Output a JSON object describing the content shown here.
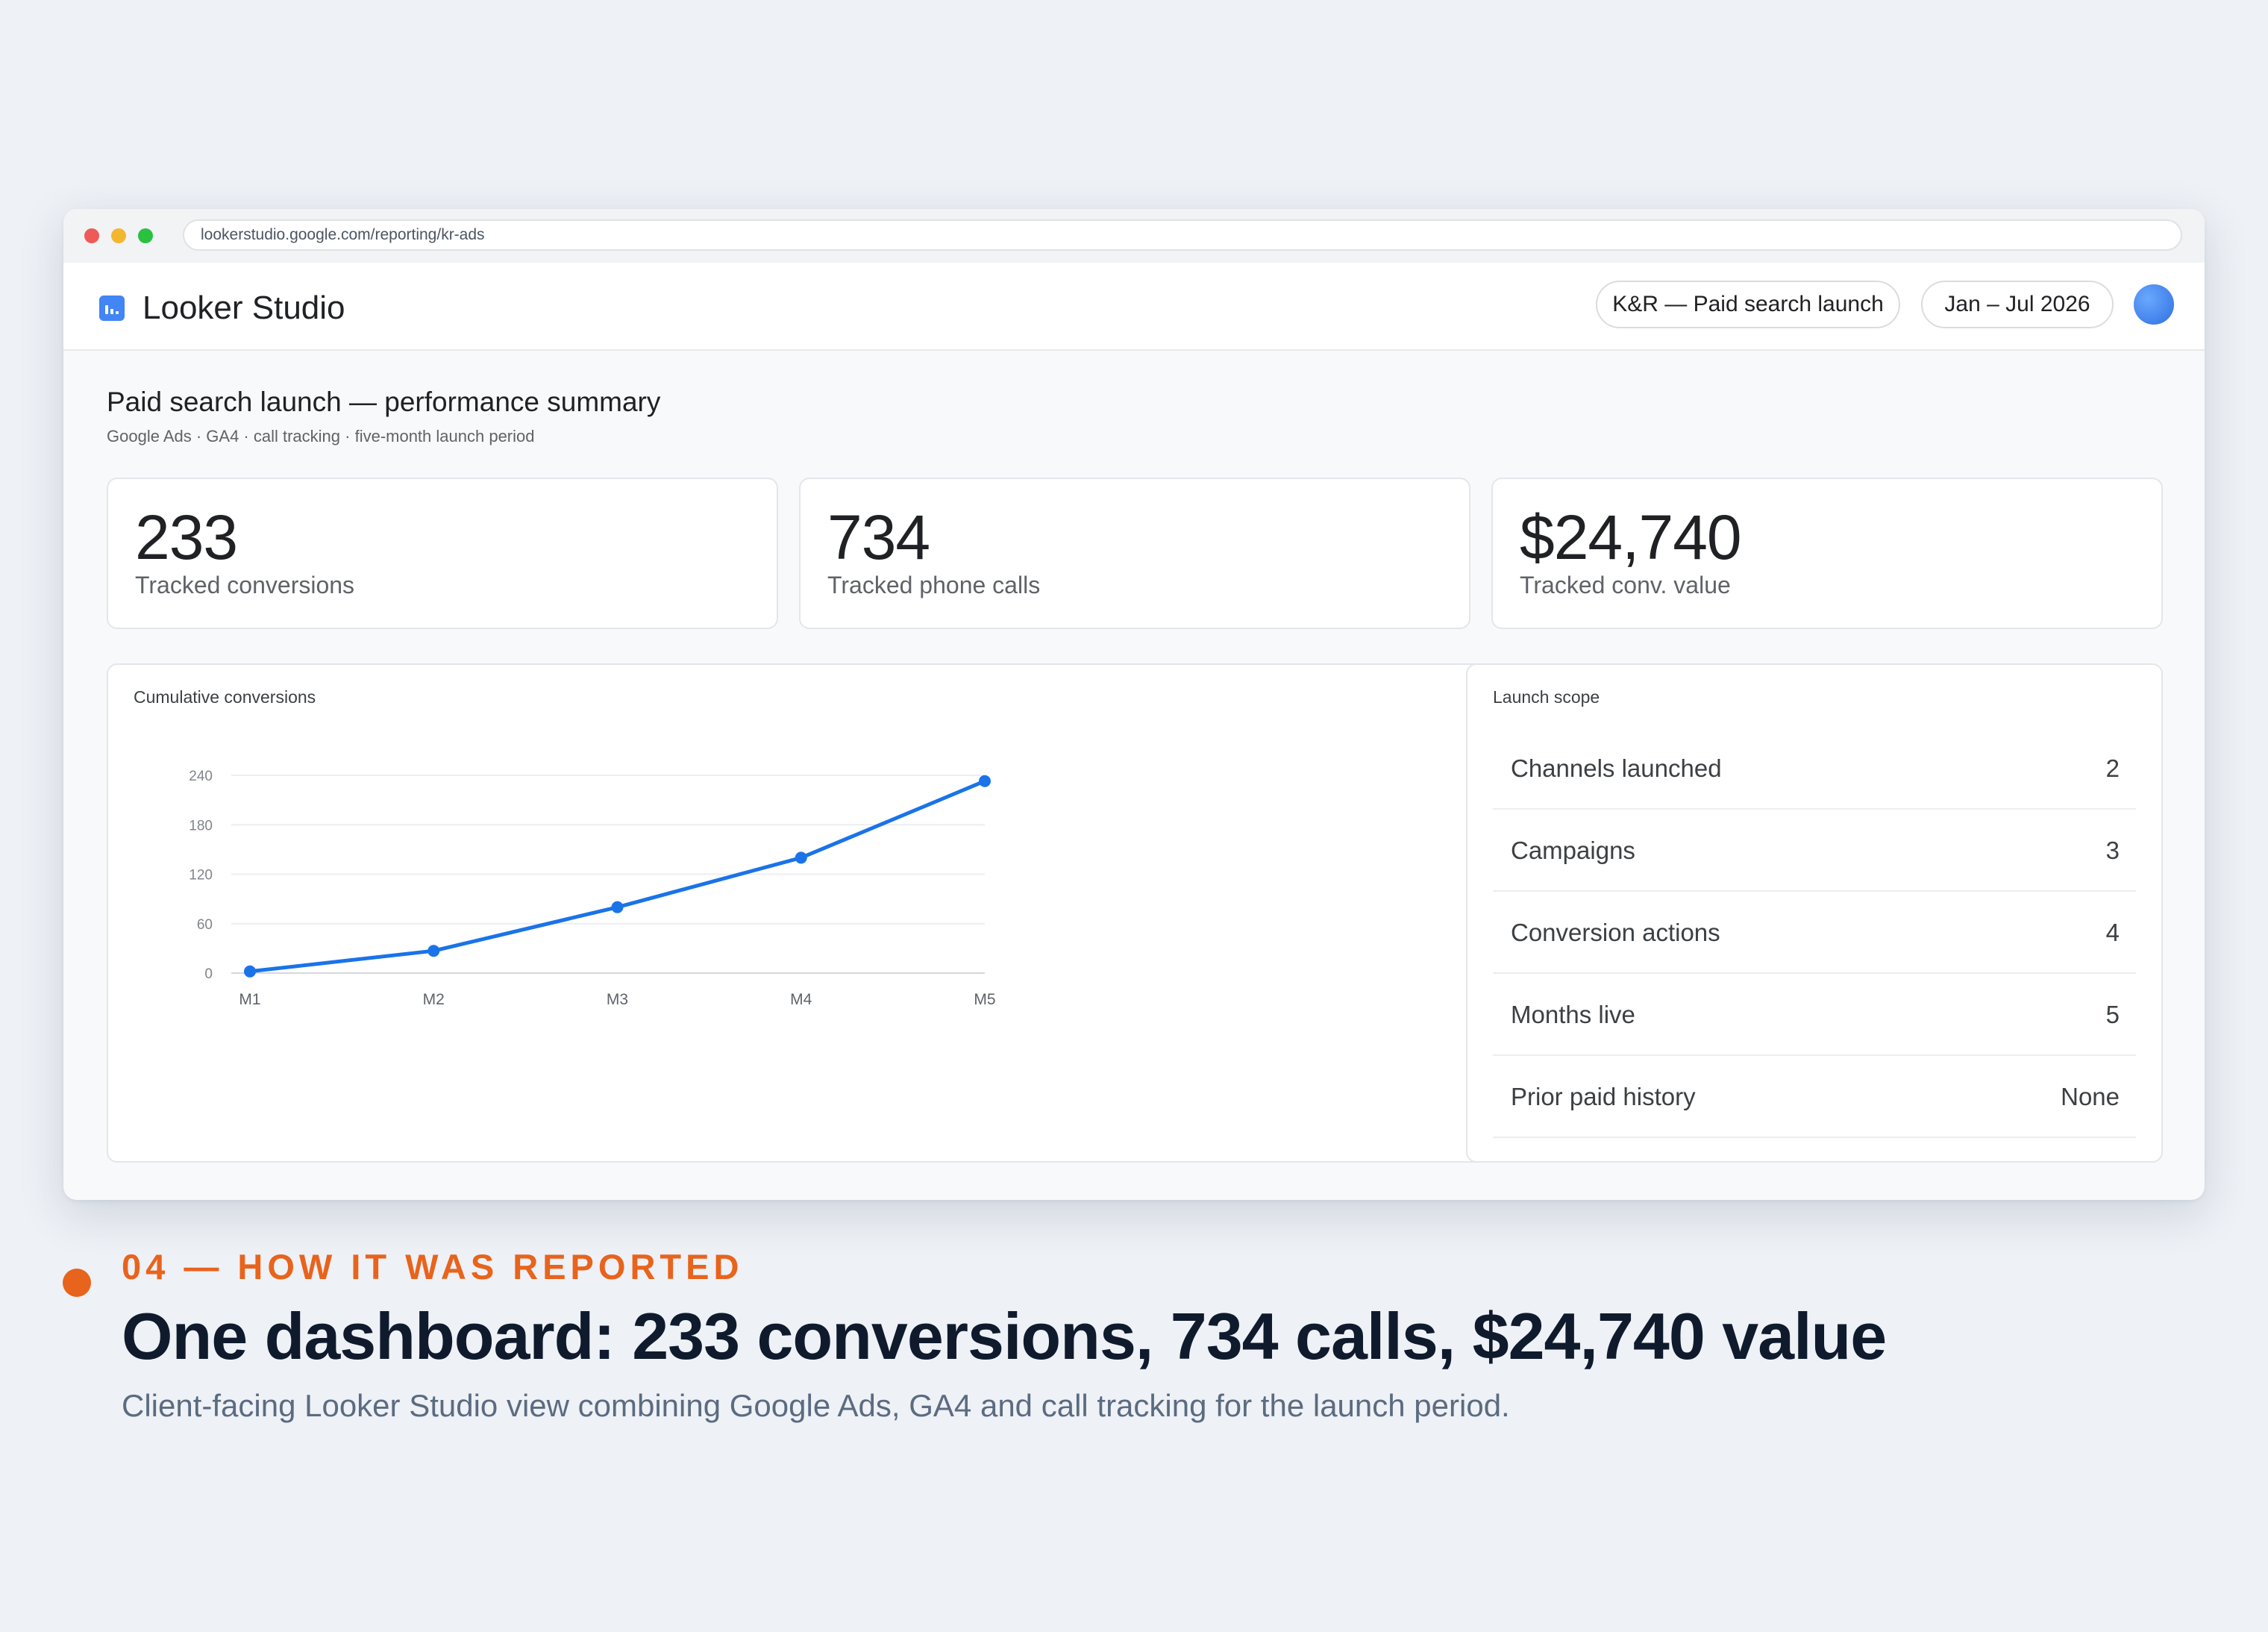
{
  "browser": {
    "url": "lookerstudio.google.com/reporting/kr-ads"
  },
  "app": {
    "title": "Looker Studio",
    "logo_icon": "bar-chart-logo-icon"
  },
  "header": {
    "report_chip": "K&R — Paid search launch",
    "date_chip": "Jan – Jul 2026"
  },
  "report": {
    "title": "Paid search launch — performance summary",
    "subtitle": "Google Ads · GA4 · call tracking · five-month launch period"
  },
  "kpis": [
    {
      "value": "233",
      "label": "Tracked conversions"
    },
    {
      "value": "734",
      "label": "Tracked phone calls"
    },
    {
      "value": "$24,740",
      "label": "Tracked conv. value"
    }
  ],
  "chart_data": {
    "type": "line",
    "title": "Cumulative conversions",
    "categories": [
      "M1",
      "M2",
      "M3",
      "M4",
      "M5"
    ],
    "series": [
      {
        "values": [
          2,
          27,
          80,
          140,
          233
        ]
      }
    ],
    "yticks": [
      0,
      60,
      120,
      180,
      240
    ],
    "ylim": [
      0,
      240
    ],
    "grid": true,
    "color": "#1a73e8"
  },
  "scope": {
    "title": "Launch scope",
    "rows": [
      {
        "label": "Channels launched",
        "value": "2"
      },
      {
        "label": "Campaigns",
        "value": "3"
      },
      {
        "label": "Conversion actions",
        "value": "4"
      },
      {
        "label": "Months live",
        "value": "5"
      },
      {
        "label": "Prior paid history",
        "value": "None"
      }
    ]
  },
  "caption": {
    "eyebrow": "04 — HOW IT WAS REPORTED",
    "headline": "One dashboard: 233 conversions, 734 calls, $24,740 value",
    "subline": "Client-facing Looker Studio view combining Google Ads, GA4 and call tracking for the launch period."
  },
  "colors": {
    "accent": "#e8631c",
    "brand": "#4285f4",
    "line": "#1a73e8"
  }
}
